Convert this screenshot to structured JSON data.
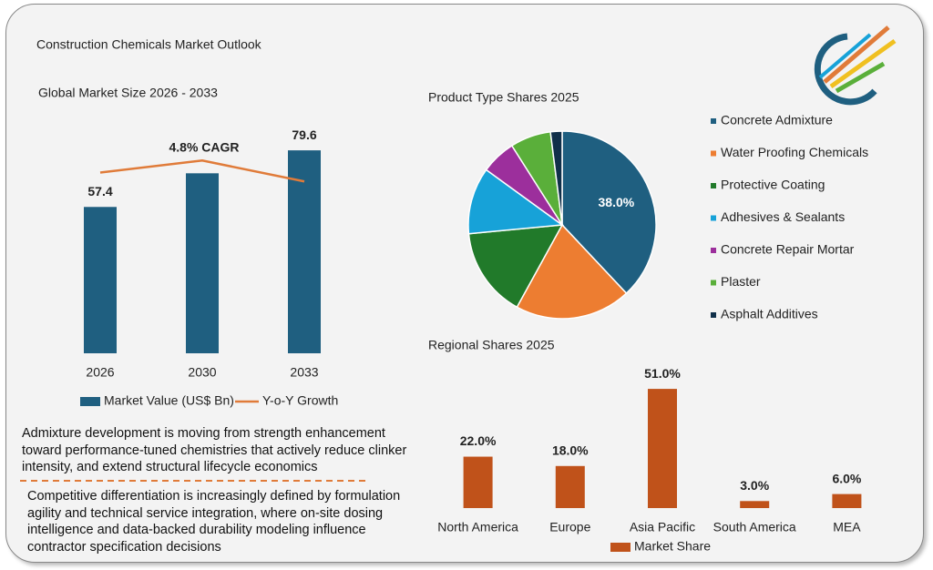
{
  "title": "Construction Chemicals Market Outlook",
  "chart_data": [
    {
      "type": "bar",
      "title": "Global Market Size 2026 - 2033",
      "categories": [
        "2026",
        "2030",
        "2033"
      ],
      "series": [
        {
          "name": "Market Value (US$ Bn)",
          "type": "bar",
          "color": "#1f5f80",
          "values": [
            57.4,
            70.6,
            79.6
          ],
          "value_labels": [
            "57.4",
            null,
            "79.6"
          ]
        },
        {
          "name": "Y-o-Y Growth",
          "type": "line",
          "color": "#e07b39",
          "values": [
            70.9,
            75.6,
            67.4
          ]
        }
      ],
      "ylim": [
        0,
        90
      ],
      "annotation": "4.8% CAGR",
      "legend": "bottom"
    },
    {
      "type": "pie",
      "title": "Product Type Shares 2025",
      "categories": [
        "Concrete Admixture",
        "Water Proofing Chemicals",
        "Protective Coating",
        "Adhesives & Sealants",
        "Concrete Repair Mortar",
        "Plaster",
        "Asphalt Additives"
      ],
      "values": [
        38.0,
        20.0,
        15.5,
        11.5,
        6.0,
        7.0,
        2.0
      ],
      "value_labels": [
        "38.0%",
        null,
        null,
        null,
        null,
        null,
        null
      ],
      "colors": [
        "#1f5f80",
        "#ed7d31",
        "#217a2a",
        "#17a2d8",
        "#9c2f9c",
        "#5aaf3a",
        "#10304a"
      ],
      "legend": "right"
    },
    {
      "type": "bar",
      "title": "Regional Shares 2025",
      "categories": [
        "North America",
        "Europe",
        "Asia Pacific",
        "South America",
        "MEA"
      ],
      "series": [
        {
          "name": "Market Share",
          "type": "bar",
          "color": "#c0521a",
          "values": [
            22.0,
            18.0,
            51.0,
            3.0,
            6.0
          ],
          "value_labels": [
            "22.0%",
            "18.0%",
            "51.0%",
            "3.0%",
            "6.0%"
          ]
        }
      ],
      "ylim": [
        0,
        60
      ],
      "legend": "bottom"
    }
  ],
  "notes": [
    "Admixture development is moving from strength enhancement toward performance-tuned chemistries that actively reduce clinker intensity, and extend structural lifecycle economics",
    "Competitive differentiation is increasingly defined by formulation agility and technical service integration, where on-site dosing intelligence and data-backed durability modeling influence contractor specification decisions"
  ]
}
